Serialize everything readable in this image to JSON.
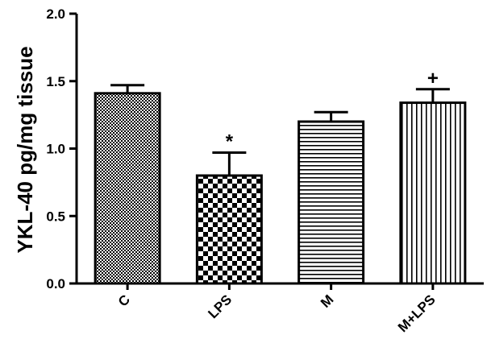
{
  "chart_data": {
    "type": "bar",
    "categories": [
      "C",
      "LPS",
      "M",
      "M+LPS"
    ],
    "values": [
      1.41,
      0.8,
      1.2,
      1.34
    ],
    "errors": [
      0.06,
      0.17,
      0.07,
      0.1
    ],
    "significance": [
      "",
      "*",
      "",
      "+"
    ],
    "patterns": [
      "fine-checker",
      "checker",
      "horizontal-lines",
      "vertical-lines"
    ],
    "ylabel": "YKL-40 pg/mg tissue",
    "ylim": [
      0,
      2.0
    ],
    "yticks": [
      "0.0",
      "0.5",
      "1.0",
      "1.5",
      "2.0"
    ],
    "grid": false
  }
}
